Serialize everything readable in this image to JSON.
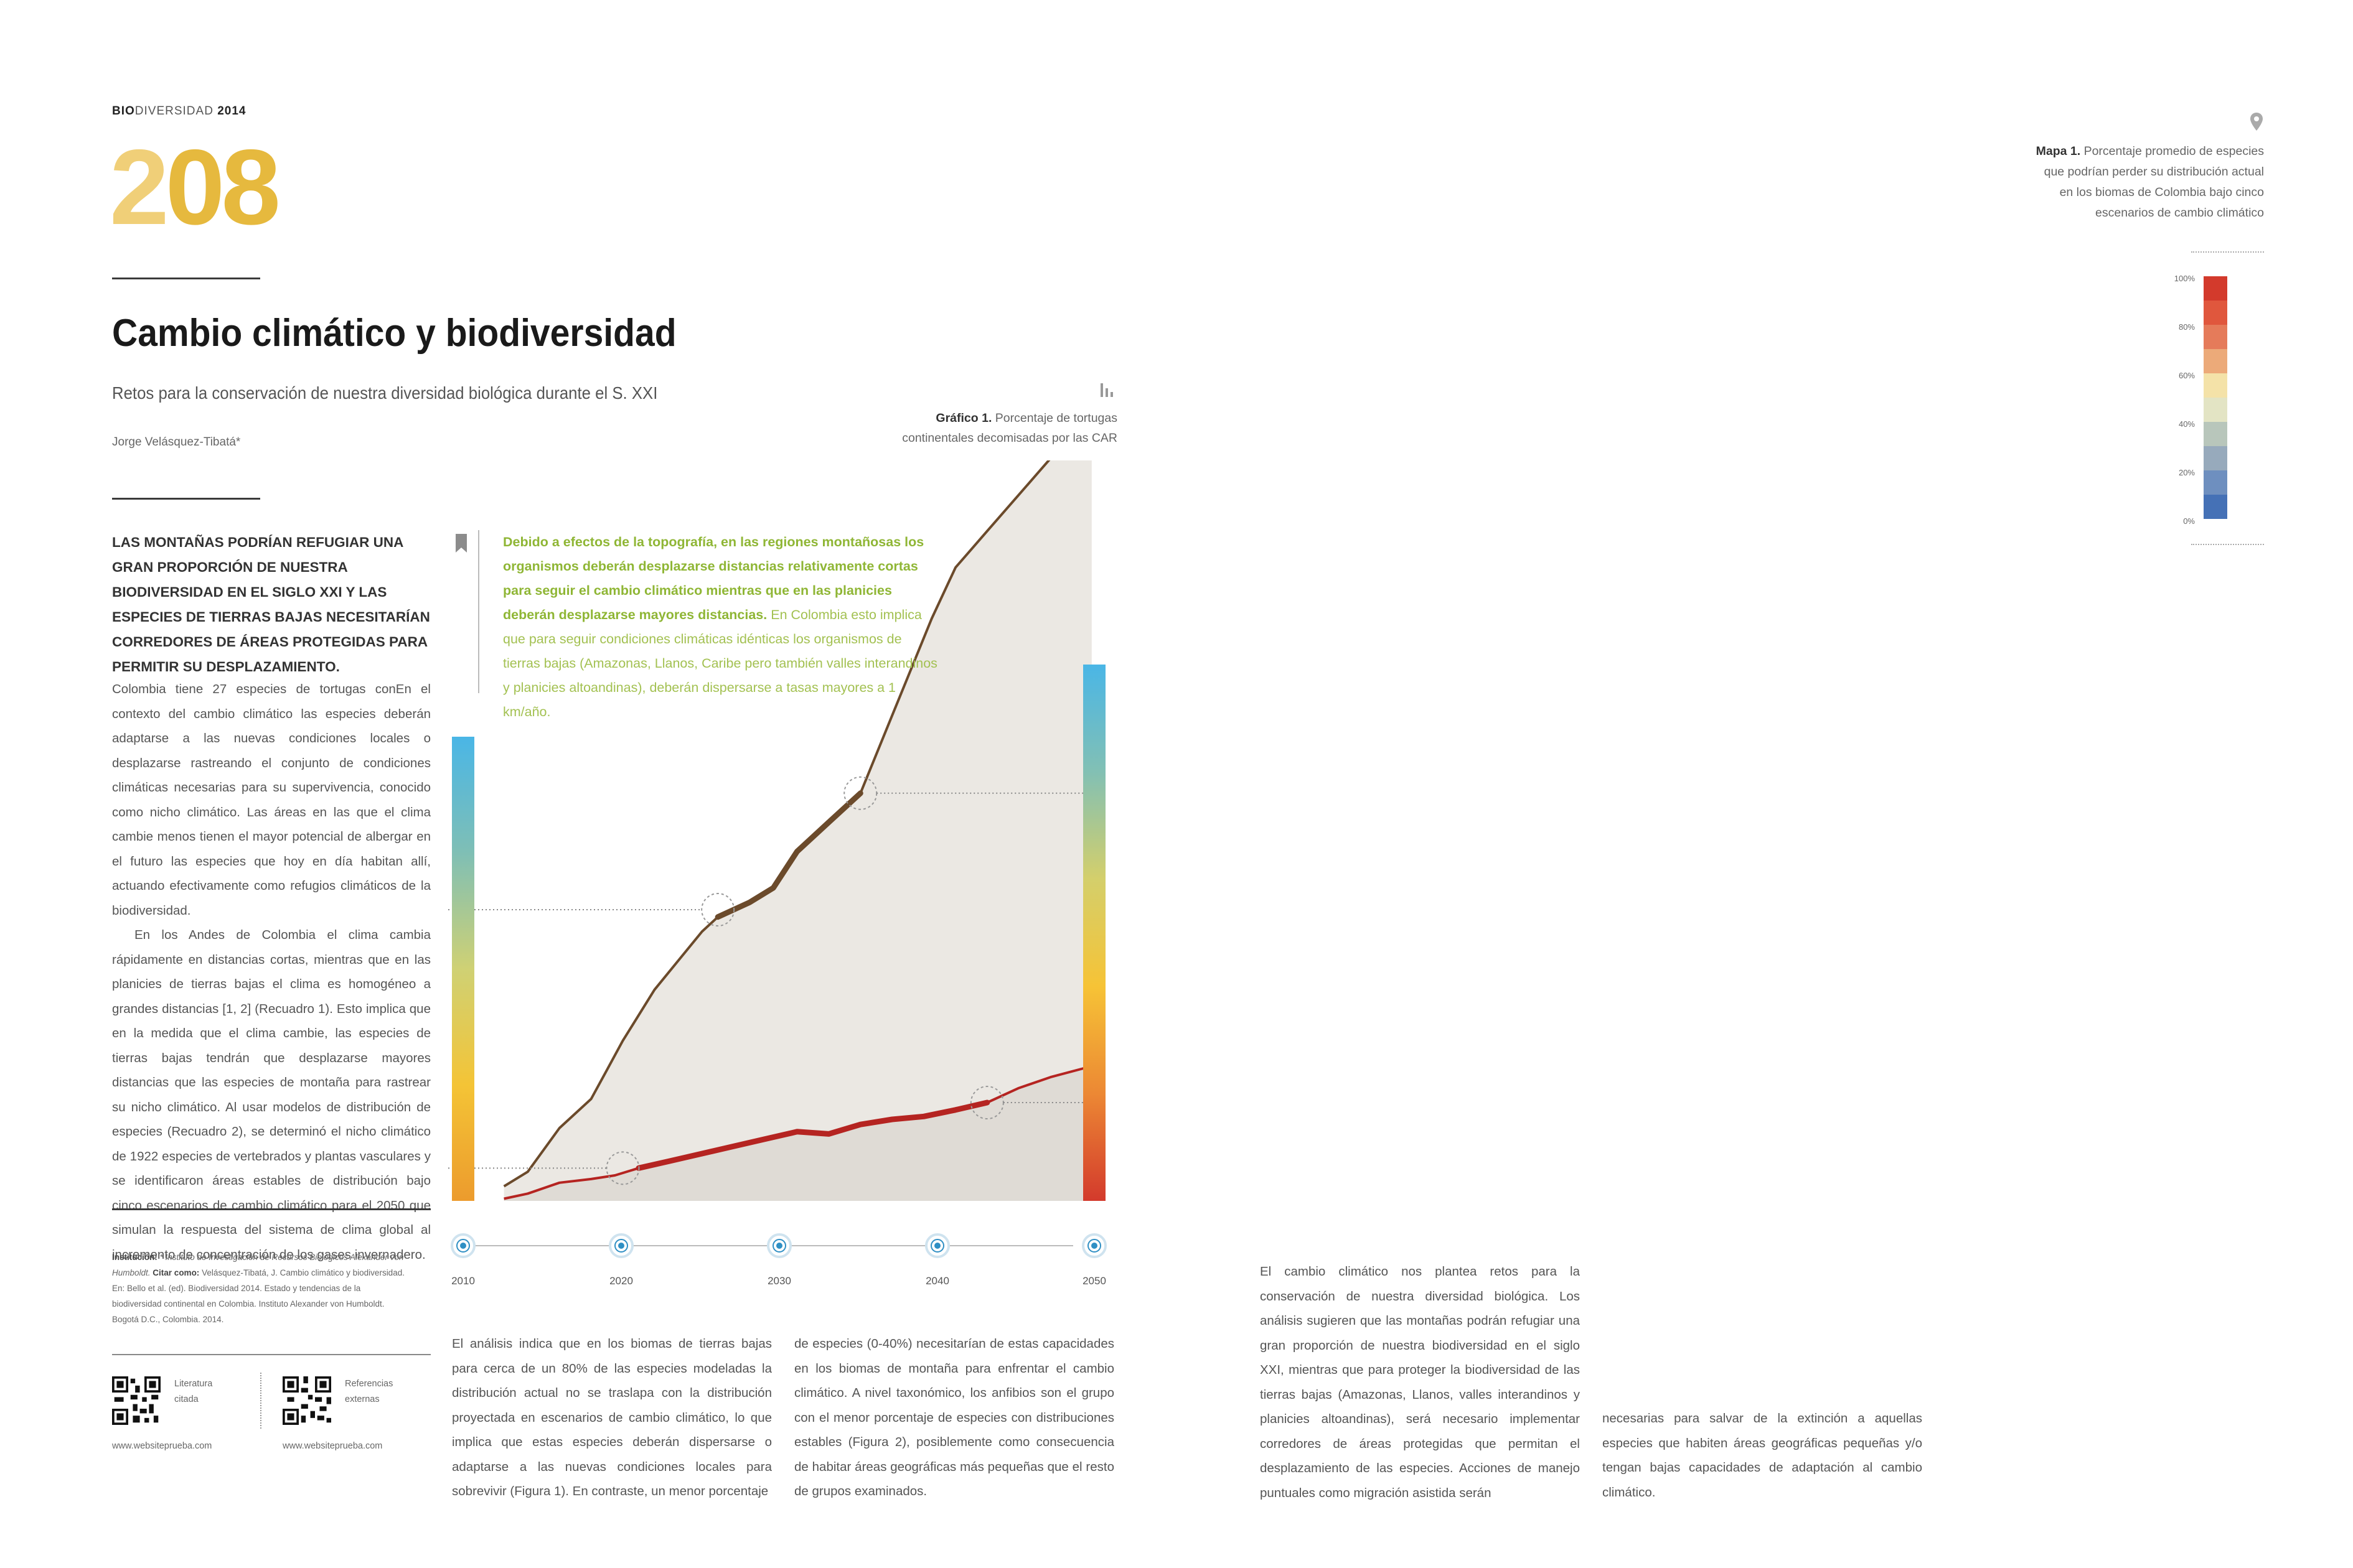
{
  "header": {
    "kicker_bold": "BIO",
    "kicker_rest": "DIVERSIDAD",
    "kicker_year": "2014",
    "page_number_first": "2",
    "page_number_rest": "08"
  },
  "article": {
    "title": "Cambio climático y biodiversidad",
    "subtitle": "Retos para la conservación de nuestra diversidad biológica durante el S. XXI",
    "author": "Jorge Velásquez-Tibatá*",
    "lead": "Las montañas podrían refugiar una gran proporción de nuestra biodiversidad en el siglo XXI y las especies de tierras bajas necesitarían corredores de áreas protegidas para permitir su desplazamiento.",
    "body_p1": "Colombia tiene 27 especies de tortugas conEn el contexto del cambio climático las especies deberán adaptarse a las nuevas condiciones locales o desplazarse rastreando el conjunto de condiciones climáticas necesarias para su supervivencia, conocido como nicho climático. Las áreas en las que el clima cambie menos tienen el mayor potencial de albergar en el futuro las especies que hoy en día habitan allí, actuando efectivamente como refugios climáticos de la biodiversidad.",
    "body_p2": "En los Andes de Colombia el clima cambia rápidamente en distancias cortas, mientras que en las planicies de tierras bajas el clima es homogéneo a grandes distancias [1, 2] (Recuadro 1). Esto implica que en la medida que el clima cambie, las especies de tierras bajas tendrán que desplazarse mayores distancias que las especies de montaña para rastrear su nicho climático. Al usar modelos de distribución de especies (Recuadro 2), se determinó el nicho climático de 1922 especies de vertebrados y plantas vasculares y se identificaron áreas estables de distribución bajo cinco escenarios de cambio climático para el 2050 que simulan la respuesta del sistema de clima global al incremento de concentración de los gases invernadero.",
    "highlight_bold": "Debido a efectos de la topografía, en las regiones montañosas los organismos deberán desplazarse distancias relativamente cortas para seguir el cambio climático mientras que en las planicies deberán desplazarse mayores distancias.",
    "highlight_rest": " En Colombia esto implica que para seguir condiciones climáticas idénticas los organismos de tierras bajas (Amazonas, Llanos, Caribe pero también valles interandinos y planicies altoandinas), deberán dispersarse a tasas mayores a 1 km/año.",
    "col_a": "El análisis indica que en los biomas de tierras bajas para cerca de un 80% de las especies modeladas la distribución actual no se traslapa con la distribución proyectada en escenarios de cambio climático, lo que implica que estas especies deberán dispersarse o adaptarse a las nuevas condiciones locales para sobrevivir (Figura 1). En contraste, un menor porcentaje",
    "col_b": "de especies (0-40%) necesitarían de estas capacidades en los biomas de montaña para enfrentar el cambio climático. A nivel taxonómico, los anfibios son el grupo con el menor porcentaje de especies con distribuciones estables (Figura 2), posiblemente como consecuencia de habitar áreas geográficas más pequeñas que el resto de grupos examinados.",
    "col_c": "El cambio climático nos plantea retos para la conservación de nuestra diversidad biológica. Los análisis sugieren que las montañas podrán refugiar una gran proporción de nuestra biodiversidad en el siglo XXI, mientras que para proteger la biodiversidad de las tierras bajas (Amazonas, Llanos, valles interandinos y planicies altoandinas), será necesario implementar corredores de áreas protegidas que permitan el desplazamiento de las especies. Acciones de manejo puntuales como migración asistida serán",
    "col_d": "necesarias para salvar de la extinción a aquellas especies que habiten áreas geográficas pequeñas y/o tengan bajas capacidades de adaptación al cambio climático."
  },
  "sidebar": {
    "inst_label": "Institución:",
    "inst_text": " * Instituto de Investigación de Recursos Biológicos Alexander von Humboldt.",
    "cite_label": "Citar como:",
    "cite_text": " Velásquez-Tibatá, J. Cambio climático y biodiversidad. En: Bello et al. (ed). Biodiversidad 2014. Estado y tendencias de la biodiversidad continental en Colombia. Instituto Alexander von Humboldt. Bogotá D.C., Colombia. 2014.",
    "qr1_label_1": "Literatura",
    "qr1_label_2": "citada",
    "qr1_url": "www.websiteprueba.com",
    "qr2_label_1": "Referencias",
    "qr2_label_2": "externas",
    "qr2_url": "www.websiteprueba.com"
  },
  "graph_caption": {
    "bold": "Gráfico 1.",
    "line1": " Porcentaje de tortugas",
    "line2": "continentales decomisadas por las CAR"
  },
  "map_caption": {
    "bold": "Mapa 1.",
    "line1": " Porcentaje promedio de especies",
    "line2": "que podrían perder su distribución actual",
    "line3": "en los biomas de Colombia bajo cinco",
    "line4": "escenarios de cambio climático"
  },
  "legend": {
    "ticks": [
      "100%",
      "80%",
      "60%",
      "40%",
      "20%",
      "0%"
    ],
    "colors": [
      "#d33a2c",
      "#e0573d",
      "#e57b5a",
      "#ecaa79",
      "#f4e2a8",
      "#e3e4c4",
      "#b8c6bb",
      "#97aabc",
      "#6e8fbf",
      "#4571b6"
    ]
  },
  "chart_data": {
    "type": "area",
    "x_ticks": [
      "2010",
      "2020",
      "2030",
      "2040",
      "2050"
    ],
    "xlim": [
      2010,
      2050
    ],
    "ylim": [
      0,
      100
    ],
    "series": [
      {
        "color": "#6b4a2b",
        "x": [
          2012.5,
          2014,
          2016,
          2018,
          2019,
          2020,
          2022,
          2023.5,
          2025,
          2026,
          2028,
          2029.5,
          2031,
          2033,
          2035,
          2036.5,
          2038,
          2039.5,
          2041,
          2043,
          2045,
          2047,
          2049.6
        ],
        "values": [
          2,
          4,
          10,
          14,
          18,
          22,
          29,
          33,
          37,
          39,
          41,
          43,
          48,
          52,
          56,
          64,
          72,
          80,
          87,
          92,
          97,
          102,
          107
        ]
      },
      {
        "color": "#b52421",
        "x": [
          2012.5,
          2014,
          2016,
          2018,
          2019.5,
          2021,
          2023,
          2025,
          2027,
          2029,
          2031,
          2033,
          2035,
          2037,
          2039,
          2041,
          2043,
          2045,
          2047,
          2049.6
        ],
        "values": [
          0.3,
          1,
          2.5,
          3,
          3.5,
          4.5,
          5.5,
          6.5,
          7.5,
          8.5,
          9.5,
          9.2,
          10.5,
          11.2,
          11.6,
          12.5,
          13.5,
          15.5,
          17,
          18.5
        ]
      }
    ],
    "left_bar_colors": [
      "#4ab6e6",
      "#7fbfb5",
      "#cfd174",
      "#f4c436",
      "#ec9b2d"
    ],
    "right_bar_colors": [
      "#4ab6e6",
      "#82c0b4",
      "#d4cf6b",
      "#f6c336",
      "#ec8834",
      "#d33a2c"
    ]
  }
}
